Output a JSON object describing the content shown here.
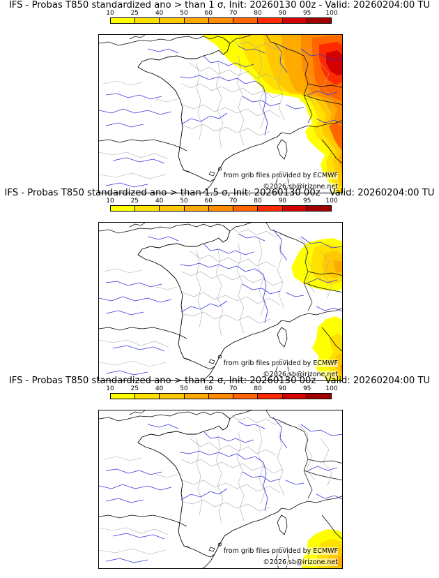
{
  "panels": [
    {
      "title": "IFS - Probas T850  standardized ano > than 1 σ, Init: 20260130 00z - Valid: 20260204:00 TU",
      "threshold": "1 σ"
    },
    {
      "title": "IFS - Probas T850  standardized ano > than 1.5 σ, Init: 20260130 00z - Valid: 20260204:00 TU",
      "threshold": "1.5 σ"
    },
    {
      "title": "IFS - Probas T850  standardized ano > than 2 σ, Init: 20260130 00z - Valid: 20260204:00 TU",
      "threshold": "2 σ"
    }
  ],
  "colorbar": {
    "ticks": [
      "10",
      "25",
      "40",
      "50",
      "60",
      "70",
      "80",
      "90",
      "95",
      "100"
    ],
    "colors": [
      "#ffff00",
      "#ffe000",
      "#ffc800",
      "#ffaa00",
      "#ff8c00",
      "#ff6600",
      "#ff2a00",
      "#d40000",
      "#a00000",
      "#600000"
    ]
  },
  "credits": {
    "source": "from grib files provided by ECMWF",
    "copyright": "©2026 sb@irizone.net"
  },
  "colors": {
    "rivers": "#3333dd",
    "borders": "#aaaaaa",
    "coast": "#000000"
  }
}
